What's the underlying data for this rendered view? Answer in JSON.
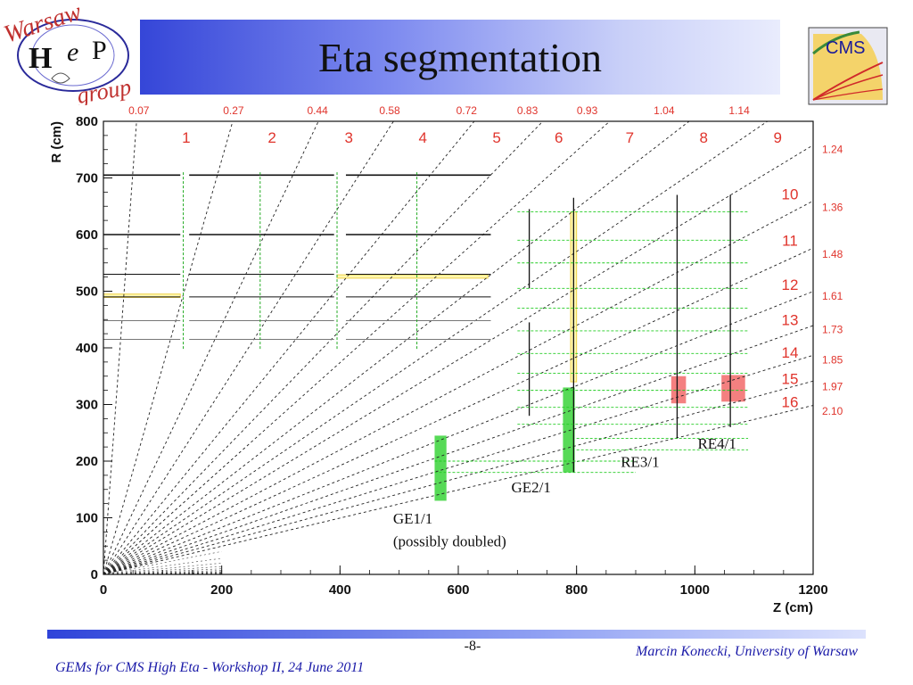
{
  "title": "Eta segmentation",
  "logo_hep": {
    "top": "Warsaw",
    "letters": [
      "H",
      "e",
      "P"
    ],
    "bottom": "group",
    "icon": "hep-group-logo"
  },
  "logo_cms": {
    "text": "CMS",
    "icon": "cms-logo"
  },
  "chart_data": {
    "type": "diagram",
    "xlabel": "Z (cm)",
    "ylabel": "R (cm)",
    "xlim": [
      0,
      1200
    ],
    "ylim": [
      0,
      800
    ],
    "x_ticks": [
      0,
      200,
      400,
      600,
      800,
      1000,
      1200
    ],
    "y_ticks": [
      0,
      100,
      200,
      300,
      400,
      500,
      600,
      700,
      800
    ],
    "top_eta_labels": [
      {
        "label": "0.07",
        "z": 60
      },
      {
        "label": "0.27",
        "z": 220
      },
      {
        "label": "0.44",
        "z": 362
      },
      {
        "label": "0.58",
        "z": 484
      },
      {
        "label": "0.72",
        "z": 614
      },
      {
        "label": "0.83",
        "z": 717
      },
      {
        "label": "0.93",
        "z": 818
      },
      {
        "label": "1.04",
        "z": 948
      },
      {
        "label": "1.14",
        "z": 1075
      }
    ],
    "ring_numbers_top": [
      {
        "label": "1",
        "z": 140
      },
      {
        "label": "2",
        "z": 285
      },
      {
        "label": "3",
        "z": 415
      },
      {
        "label": "4",
        "z": 540
      },
      {
        "label": "5",
        "z": 665
      },
      {
        "label": "6",
        "z": 770
      },
      {
        "label": "7",
        "z": 890
      },
      {
        "label": "8",
        "z": 1015
      },
      {
        "label": "9",
        "z": 1140
      }
    ],
    "ring_numbers_side": [
      {
        "label": "10",
        "r": 672
      },
      {
        "label": "11",
        "r": 590
      },
      {
        "label": "12",
        "r": 512
      },
      {
        "label": "13",
        "r": 450
      },
      {
        "label": "14",
        "r": 392
      },
      {
        "label": "15",
        "r": 346
      },
      {
        "label": "16",
        "r": 305
      }
    ],
    "eta_side_labels": [
      {
        "label": "1.24",
        "r": 752
      },
      {
        "label": "1.36",
        "r": 650
      },
      {
        "label": "1.48",
        "r": 567
      },
      {
        "label": "1.61",
        "r": 493
      },
      {
        "label": "1.73",
        "r": 434
      },
      {
        "label": "1.85",
        "r": 380
      },
      {
        "label": "1.97",
        "r": 333
      },
      {
        "label": "2.10",
        "r": 290
      }
    ],
    "eta_lines": [
      0.07,
      0.27,
      0.44,
      0.58,
      0.72,
      0.83,
      0.93,
      1.04,
      1.14,
      1.24,
      1.36,
      1.48,
      1.61,
      1.73,
      1.85,
      1.97,
      2.1
    ],
    "annotations": [
      {
        "label": "GE1/1",
        "z": 550,
        "r": 90
      },
      {
        "label": "(possibly doubled)",
        "z": 550,
        "r": 50
      },
      {
        "label": "GE2/1",
        "z": 750,
        "r": 145
      },
      {
        "label": "RE3/1",
        "z": 935,
        "r": 190
      },
      {
        "label": "RE4/1",
        "z": 1065,
        "r": 222
      }
    ],
    "highlight_regions": [
      {
        "name": "GE1/1",
        "color": "#3ad43a",
        "z0": 560,
        "z1": 580,
        "r0": 130,
        "r1": 245
      },
      {
        "name": "GE2/1",
        "color": "#3ad43a",
        "z0": 777,
        "z1": 797,
        "r0": 180,
        "r1": 330
      },
      {
        "name": "RE3/1",
        "color": "#f26a6a",
        "z0": 960,
        "z1": 985,
        "r0": 302,
        "r1": 350
      },
      {
        "name": "RE4/1",
        "color": "#f26a6a",
        "z0": 1045,
        "z1": 1085,
        "r0": 305,
        "r1": 352
      }
    ]
  },
  "footer": {
    "page": "-8-",
    "author": "Marcin Konecki,  University of Warsaw",
    "event": "GEMs for CMS High Eta - Workshop II, 24 June 2011"
  },
  "colors": {
    "eta_label": "#e0342c",
    "chamber_number": "#2b2bcc",
    "strip_number": "#22aa22",
    "green_box": "#3ad43a",
    "red_box": "#f26a6a"
  }
}
